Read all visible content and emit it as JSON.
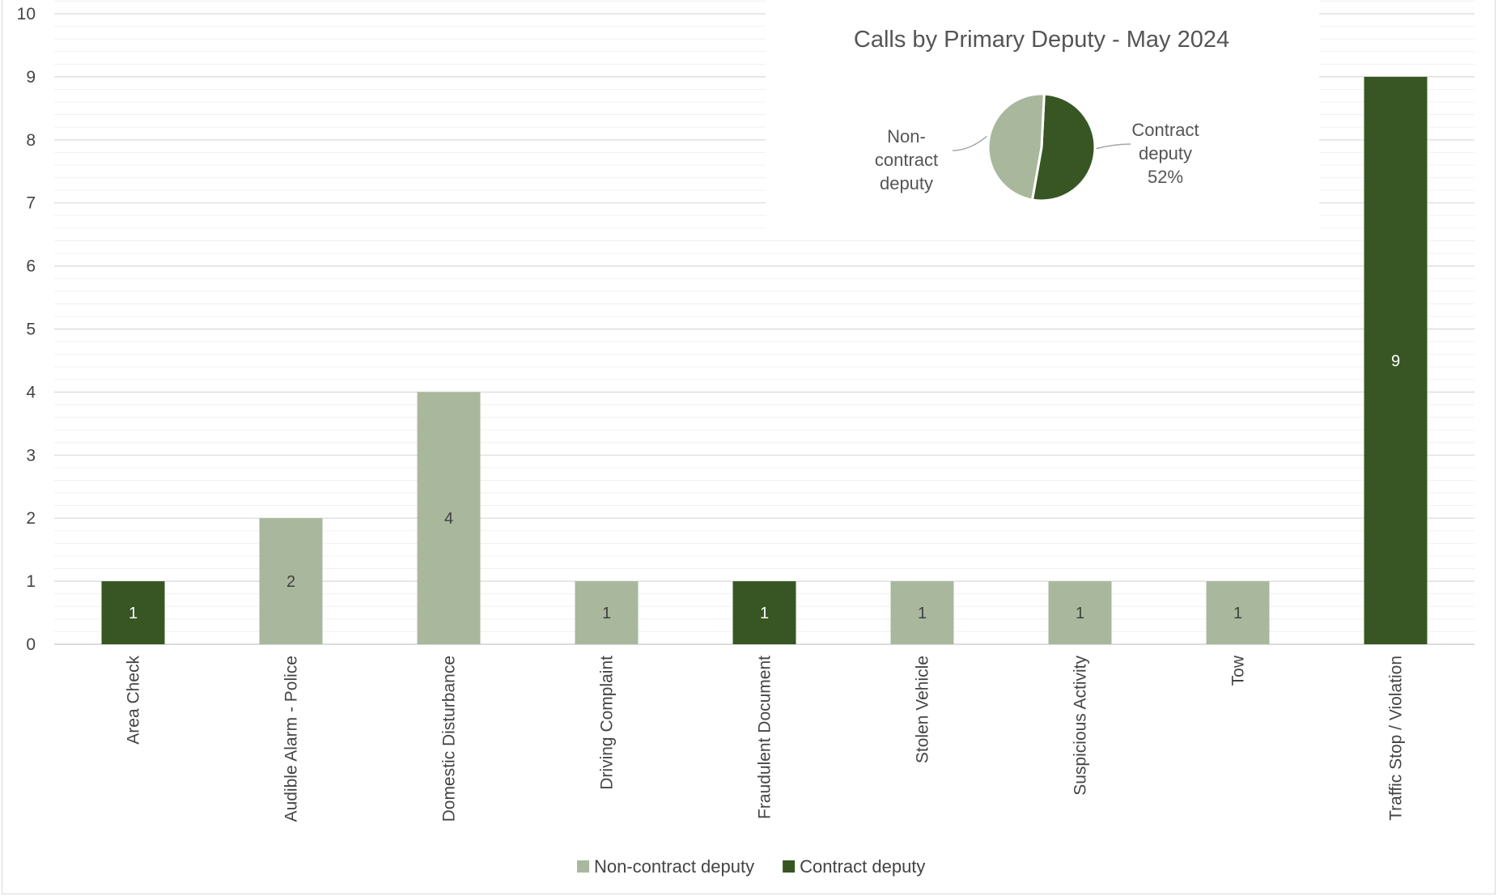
{
  "chart_data": [
    {
      "type": "bar",
      "title": "",
      "xlabel": "",
      "ylabel": "",
      "ylim": [
        0,
        10
      ],
      "y_ticks": [
        0,
        1,
        2,
        3,
        4,
        5,
        6,
        7,
        8,
        9,
        10
      ],
      "minor_grid": true,
      "legend_position": "bottom",
      "categories": [
        "Area Check",
        "Audible Alarm - Police",
        "Domestic Disturbance",
        "Driving Complaint",
        "Fraudulent Document",
        "Stolen Vehicle",
        "Suspicious Activity",
        "Tow",
        "Traffic Stop / Violation"
      ],
      "values": [
        1,
        2,
        4,
        1,
        1,
        1,
        1,
        1,
        9
      ],
      "series_assignment": [
        "Contract deputy",
        "Non-contract deputy",
        "Non-contract deputy",
        "Non-contract deputy",
        "Contract deputy",
        "Non-contract deputy",
        "Non-contract deputy",
        "Non-contract deputy",
        "Contract deputy"
      ],
      "series": [
        {
          "name": "Non-contract deputy",
          "color": "#a9b89d"
        },
        {
          "name": "Contract deputy",
          "color": "#375623"
        }
      ]
    },
    {
      "type": "pie",
      "title": "Calls by Primary Deputy - May 2024",
      "slices": [
        {
          "label": "Contract deputy",
          "value": 52,
          "display": [
            "Contract",
            "deputy",
            "52%"
          ],
          "color": "#375623"
        },
        {
          "label": "Non-contract deputy",
          "value": 48,
          "display": [
            "Non-",
            "contract",
            "deputy"
          ],
          "color": "#a9b89d"
        }
      ]
    }
  ]
}
